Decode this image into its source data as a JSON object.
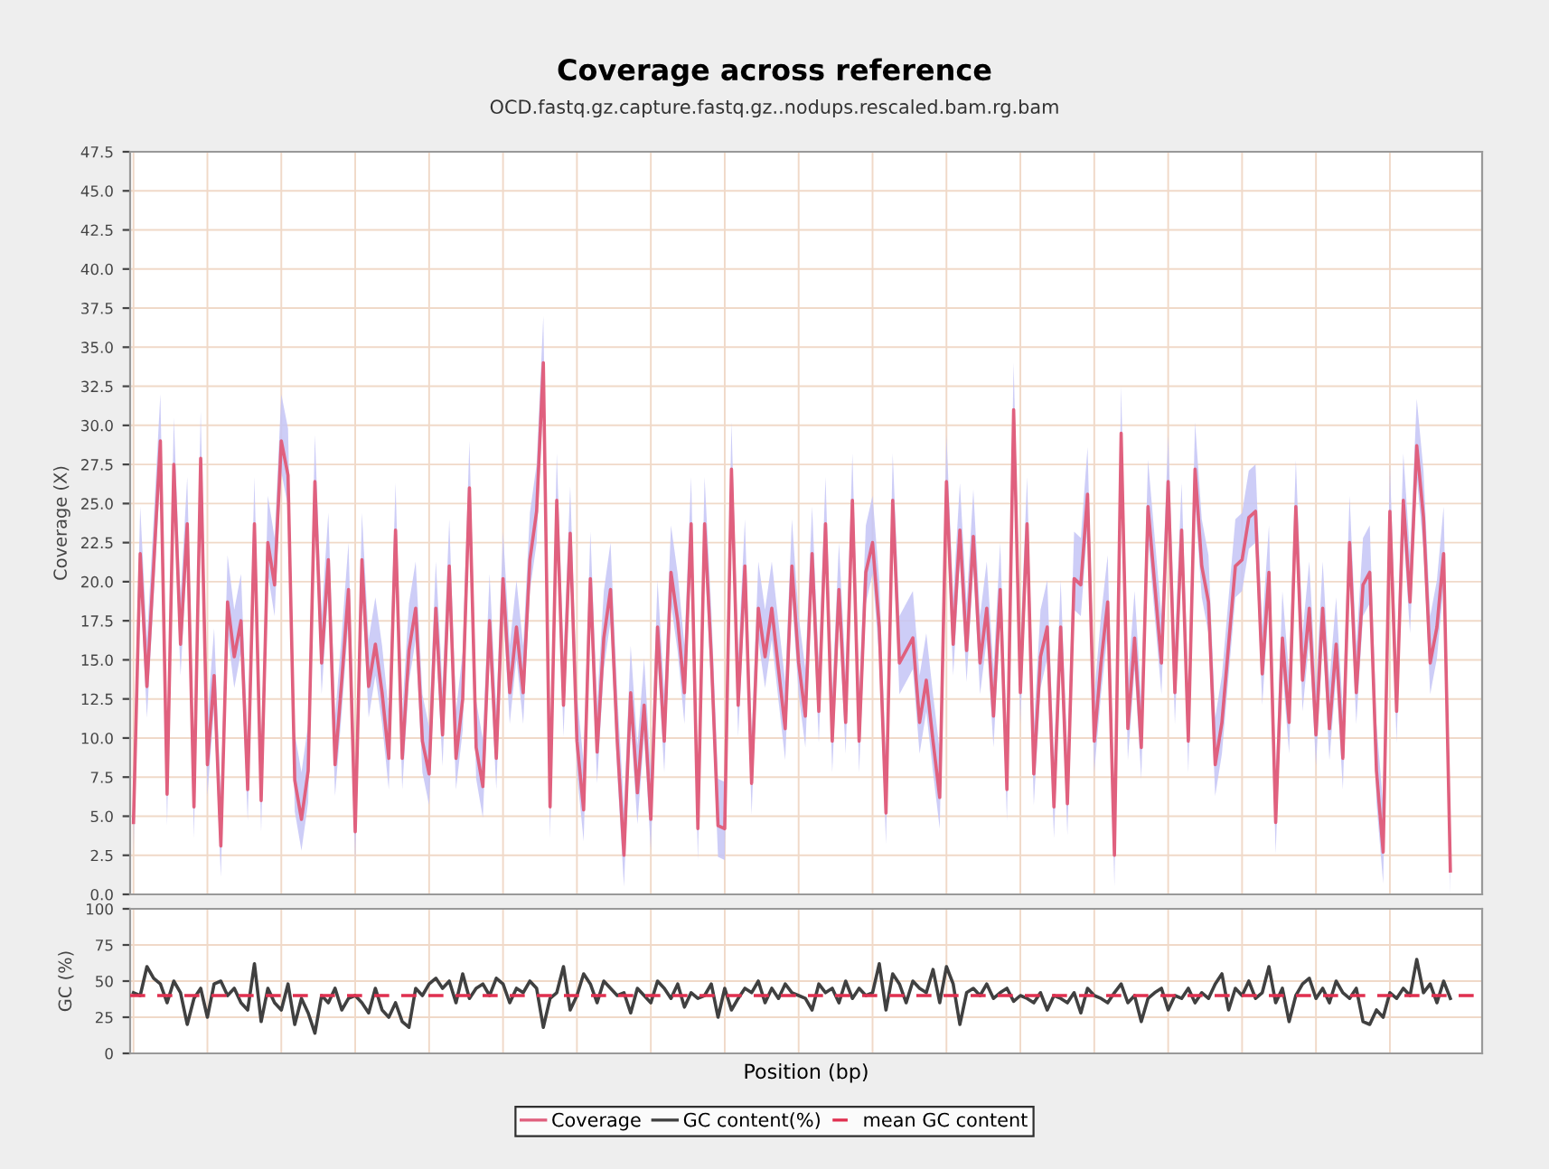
{
  "chart_data": [
    {
      "type": "line",
      "title": "Coverage across reference",
      "subtitle": "OCD.fastq.gz.capture.fastq.gz..nodups.rescaled.bam.rg.bam",
      "ylabel": "Coverage (X)",
      "categories": [
        null,
        null,
        null,
        null,
        null,
        null,
        null,
        null,
        null,
        null,
        null,
        null,
        null,
        null,
        null,
        null,
        null,
        null,
        null,
        null,
        null,
        null,
        null,
        null,
        null,
        null,
        null,
        null,
        null,
        null,
        null,
        null,
        null,
        null,
        null,
        null,
        null,
        null,
        null,
        null,
        null,
        null,
        null,
        null,
        null,
        null,
        null,
        null,
        null,
        null,
        null,
        null,
        null,
        null,
        null,
        null,
        null,
        null,
        null,
        null,
        null,
        null,
        null,
        null,
        null,
        null,
        null,
        null,
        null,
        null,
        null,
        null,
        null,
        null,
        null,
        null,
        null,
        null,
        null,
        null,
        null,
        null,
        null,
        null,
        null,
        null,
        null,
        null,
        null,
        null,
        null,
        null,
        null,
        null,
        null,
        null,
        null,
        null,
        null,
        null,
        null,
        null,
        null,
        null,
        null,
        null,
        null,
        null,
        null,
        null,
        null,
        null,
        null,
        null,
        null,
        null,
        null,
        null,
        null,
        null,
        null,
        null,
        null,
        null,
        null,
        null,
        null,
        null,
        null,
        null,
        null,
        null,
        null,
        null,
        null,
        null,
        null,
        null,
        null,
        null,
        null,
        null,
        null,
        null,
        null,
        null,
        null,
        null,
        null,
        null,
        null,
        null,
        null,
        null,
        null,
        null,
        null,
        null,
        null,
        null,
        null,
        null,
        null,
        null,
        null,
        null,
        null,
        null,
        null,
        null,
        null,
        null,
        null,
        null,
        null,
        null,
        null,
        null,
        null,
        null,
        null,
        null,
        null,
        null,
        null,
        null,
        null,
        null,
        null,
        null,
        null,
        null,
        null,
        null,
        null,
        null,
        null
      ],
      "series": [
        {
          "name": "Coverage",
          "color": "#e0607e",
          "values": [
            4.6,
            21.8,
            13.3,
            21,
            29,
            6.4,
            27.5,
            16,
            23.7,
            5.6,
            27.9,
            8.3,
            14,
            3.1,
            18.7,
            15.2,
            17.5,
            6.7,
            23.7,
            6,
            22.5,
            19.8,
            29,
            26.8,
            7.3,
            4.8,
            7.9,
            26.4,
            14.8,
            21.4,
            8.3,
            13.7,
            19.5,
            4,
            21.4,
            13.3,
            16,
            12.9,
            8.7,
            23.3,
            8.7,
            15.6,
            18.3,
            9.8,
            7.7,
            18.3,
            10.2,
            21,
            8.7,
            12.5,
            26,
            9.4,
            6.9,
            17.5,
            8.7,
            20.2,
            12.9,
            17.1,
            12.9,
            21.4,
            24.5,
            34,
            5.6,
            25.2,
            12.1,
            23.1,
            9.8,
            5.4,
            20.2,
            9.1,
            16.4,
            19.5,
            9.8,
            2.5,
            12.9,
            6.5,
            12.1,
            4.8,
            17.1,
            9.8,
            20.6,
            17.5,
            12.9,
            23.7,
            4.2,
            23.7,
            15.2,
            4.4,
            4.2,
            27.2,
            12.1,
            21,
            7.1,
            18.3,
            15.2,
            18.3,
            14.4,
            10.6,
            21,
            14.8,
            11.4,
            21.8,
            11.7,
            23.7,
            9.8,
            19.5,
            11,
            25.2,
            9.8,
            20.6,
            22.5,
            17.1,
            5.2,
            25.2,
            14.8,
            15.6,
            16.4,
            11,
            13.7,
            9.8,
            6.2,
            26.4,
            16,
            23.3,
            15.6,
            22.9,
            14.8,
            18.3,
            11.4,
            19.5,
            6.7,
            31,
            12.9,
            23.7,
            7.7,
            15.2,
            17.1,
            5.6,
            17.1,
            5.8,
            20.2,
            19.8,
            25.6,
            9.8,
            14.8,
            18.7,
            2.5,
            29.5,
            10.6,
            16.4,
            9.4,
            24.8,
            19.8,
            14.8,
            26.4,
            12.9,
            23.3,
            9.8,
            27.2,
            21,
            18.7,
            8.3,
            11,
            16,
            21,
            21.4,
            24.1,
            24.5,
            14.1,
            20.6,
            4.6,
            16.4,
            11,
            24.8,
            13.7,
            18.3,
            10.2,
            18.3,
            10.6,
            16,
            8.7,
            22.5,
            12.9,
            19.8,
            20.6,
            7.9,
            2.7,
            24.5,
            11.7,
            25.2,
            18.7,
            28.7,
            24.1,
            14.8,
            17.1,
            21.8,
            1.5
          ],
          "upper": [
            7.6,
            24.8,
            16.3,
            24,
            32,
            9.4,
            30.5,
            19,
            26.7,
            8.6,
            30.9,
            11.3,
            17,
            6.1,
            21.7,
            18.2,
            20.5,
            9.7,
            26.7,
            9,
            25.5,
            22.8,
            32,
            29.8,
            10.3,
            7.8,
            10.9,
            29.4,
            17.8,
            24.4,
            11.3,
            16.7,
            22.5,
            7,
            24.4,
            16.3,
            19,
            15.9,
            11.7,
            26.3,
            11.7,
            18.6,
            21.3,
            12.8,
            10.7,
            21.3,
            13.2,
            24,
            11.7,
            15.5,
            29,
            12.4,
            9.9,
            20.5,
            11.7,
            23.2,
            15.9,
            20.1,
            15.9,
            24.4,
            27.5,
            37,
            8.6,
            28.2,
            15.1,
            26.1,
            12.8,
            8.4,
            23.2,
            12.1,
            19.4,
            22.5,
            12.8,
            5.5,
            15.9,
            9.5,
            15.1,
            7.8,
            20.1,
            12.8,
            23.6,
            20.5,
            15.9,
            26.7,
            7.2,
            26.7,
            18.2,
            7.4,
            7.2,
            30.2,
            15.1,
            24,
            10.1,
            21.3,
            18.2,
            21.3,
            17.4,
            13.6,
            24,
            17.8,
            14.4,
            24.8,
            14.7,
            26.7,
            12.8,
            22.5,
            14,
            28.2,
            12.8,
            23.6,
            25.5,
            20.1,
            8.2,
            28.2,
            17.8,
            18.6,
            19.4,
            14,
            16.7,
            12.8,
            9.2,
            29.4,
            19,
            26.3,
            18.6,
            25.9,
            17.8,
            21.3,
            14.4,
            22.5,
            9.7,
            34,
            15.9,
            26.7,
            10.7,
            18.2,
            20.1,
            8.6,
            20.1,
            8.8,
            23.2,
            22.8,
            28.6,
            12.8,
            17.8,
            21.7,
            5.5,
            32.5,
            13.6,
            19.4,
            12.4,
            27.8,
            22.8,
            17.8,
            29.4,
            15.9,
            26.3,
            12.8,
            30.2,
            24,
            21.7,
            11.3,
            14,
            19,
            24,
            24.4,
            27.1,
            27.5,
            17.1,
            23.6,
            7.6,
            19.4,
            14,
            27.8,
            16.7,
            21.3,
            13.2,
            21.3,
            13.6,
            19,
            11.7,
            25.5,
            15.9,
            22.8,
            23.6,
            10.9,
            5.7,
            27.5,
            14.7,
            28.2,
            21.7,
            31.7,
            27.1,
            17.8,
            20.1,
            24.8,
            4.5
          ],
          "lower": [
            2.6,
            19.8,
            11.3,
            19,
            27,
            4.4,
            25.5,
            14,
            21.7,
            3.6,
            25.9,
            6.3,
            12,
            1.1,
            16.7,
            13.2,
            15.5,
            4.7,
            21.7,
            4,
            20.5,
            17.8,
            27,
            24.8,
            5.3,
            2.8,
            5.9,
            24.4,
            12.8,
            19.4,
            6.3,
            11.7,
            17.5,
            2,
            19.4,
            11.3,
            14,
            10.9,
            6.7,
            21.3,
            6.7,
            13.6,
            16.3,
            7.8,
            5.7,
            16.3,
            8.2,
            19,
            6.7,
            10.5,
            24,
            7.4,
            4.9,
            15.5,
            6.7,
            18.2,
            10.9,
            15.1,
            10.9,
            19.4,
            22.5,
            32,
            3.6,
            23.2,
            10.1,
            21.1,
            7.8,
            3.4,
            18.2,
            7.1,
            14.4,
            17.5,
            7.8,
            0.5,
            10.9,
            4.5,
            10.1,
            2.8,
            15.1,
            7.8,
            18.6,
            15.5,
            10.9,
            21.7,
            2.2,
            21.7,
            13.2,
            2.4,
            2.2,
            25.2,
            10.1,
            19,
            5.1,
            16.3,
            13.2,
            16.3,
            12.4,
            8.6,
            19,
            12.8,
            9.4,
            19.8,
            9.7,
            21.7,
            7.8,
            17.5,
            9,
            23.2,
            7.8,
            18.6,
            20.5,
            15.1,
            3.2,
            23.2,
            12.8,
            13.6,
            14.4,
            9,
            11.7,
            7.8,
            4.2,
            24.4,
            14,
            21.3,
            13.6,
            20.9,
            12.8,
            16.3,
            9.4,
            17.5,
            4.7,
            29,
            10.9,
            21.7,
            5.7,
            13.2,
            15.1,
            3.6,
            15.1,
            3.8,
            18.2,
            17.8,
            23.6,
            7.8,
            12.8,
            16.7,
            0.5,
            27.5,
            8.6,
            14.4,
            7.4,
            22.8,
            17.8,
            12.8,
            24.4,
            10.9,
            21.3,
            7.8,
            25.2,
            19,
            16.7,
            6.3,
            9,
            14,
            19,
            19.4,
            22.1,
            22.5,
            12.1,
            18.6,
            2.6,
            14.4,
            9,
            22.8,
            11.7,
            16.3,
            8.2,
            16.3,
            8.6,
            14,
            6.7,
            20.5,
            10.9,
            17.8,
            18.6,
            5.9,
            0.7,
            22.5,
            9.7,
            23.2,
            16.7,
            26.7,
            22.1,
            12.8,
            15.1,
            19.8,
            0
          ]
        }
      ],
      "ylim": [
        0,
        47.5
      ],
      "yticks": [
        {
          "value": 0,
          "label": "0.0"
        },
        2.5,
        {
          "value": 5,
          "label": "5.0"
        },
        7.5,
        {
          "value": 10,
          "label": "10.0"
        },
        12.5,
        {
          "value": 15,
          "label": "15.0"
        },
        17.5,
        {
          "value": 20,
          "label": "20.0"
        },
        22.5,
        {
          "value": 25,
          "label": "25.0"
        },
        27.5,
        {
          "value": 30,
          "label": "30.0"
        },
        32.5,
        {
          "value": 35,
          "label": "35.0"
        },
        37.5,
        {
          "value": 40,
          "label": "40.0"
        },
        42.5,
        {
          "value": 45,
          "label": "45.0"
        },
        47.5
      ],
      "grid": true,
      "legend": "bottom",
      "tick_labels": "y"
    },
    {
      "type": "line",
      "ylabel": "GC (%)",
      "xlabel": "Position (bp)",
      "categories": [
        null,
        null,
        null,
        null,
        null,
        null,
        null,
        null,
        null,
        null,
        null,
        null,
        null,
        null,
        null,
        null,
        null,
        null,
        null,
        null,
        null,
        null,
        null,
        null,
        null,
        null,
        null,
        null,
        null,
        null,
        null,
        null,
        null,
        null,
        null,
        null,
        null,
        null,
        null,
        null,
        null,
        null,
        null,
        null,
        null,
        null,
        null,
        null,
        null,
        null,
        null,
        null,
        null,
        null,
        null,
        null,
        null,
        null,
        null,
        null,
        null,
        null,
        null,
        null,
        null,
        null,
        null,
        null,
        null,
        null,
        null,
        null,
        null,
        null,
        null,
        null,
        null,
        null,
        null,
        null,
        null,
        null,
        null,
        null,
        null,
        null,
        null,
        null,
        null,
        null,
        null,
        null,
        null,
        null,
        null,
        null,
        null,
        null,
        null,
        null,
        null,
        null,
        null,
        null,
        null,
        null,
        null,
        null,
        null,
        null,
        null,
        null,
        null,
        null,
        null,
        null,
        null,
        null,
        null,
        null,
        null,
        null,
        null,
        null,
        null,
        null,
        null,
        null,
        null,
        null,
        null,
        null,
        null,
        null,
        null,
        null,
        null,
        null,
        null,
        null,
        null,
        null,
        null,
        null,
        null,
        null,
        null,
        null,
        null,
        null,
        null,
        null,
        null,
        null,
        null,
        null,
        null,
        null,
        null,
        null,
        null,
        null,
        null,
        null,
        null,
        null,
        null,
        null,
        null,
        null,
        null,
        null,
        null,
        null,
        null,
        null,
        null,
        null,
        null,
        null,
        null,
        null,
        null,
        null,
        null,
        null,
        null,
        null,
        null,
        null,
        null,
        null,
        null,
        null,
        null,
        null,
        null
      ],
      "series": [
        {
          "name": "GC content(%)",
          "color": "#404040",
          "values": [
            42,
            40,
            60,
            52,
            48,
            35,
            50,
            42,
            20,
            38,
            45,
            25,
            48,
            50,
            40,
            45,
            35,
            30,
            62,
            22,
            45,
            35,
            30,
            48,
            20,
            38,
            28,
            14,
            40,
            35,
            45,
            30,
            38,
            40,
            35,
            28,
            45,
            30,
            25,
            35,
            22,
            18,
            45,
            40,
            48,
            52,
            45,
            50,
            35,
            55,
            38,
            45,
            48,
            40,
            52,
            48,
            35,
            45,
            42,
            50,
            45,
            18,
            38,
            42,
            60,
            30,
            40,
            55,
            48,
            35,
            50,
            45,
            40,
            42,
            28,
            45,
            40,
            35,
            50,
            45,
            38,
            48,
            32,
            42,
            38,
            40,
            48,
            25,
            45,
            30,
            38,
            45,
            42,
            50,
            35,
            45,
            38,
            48,
            42,
            40,
            38,
            30,
            48,
            42,
            45,
            35,
            50,
            38,
            45,
            40,
            42,
            62,
            30,
            55,
            48,
            35,
            50,
            45,
            42,
            58,
            35,
            60,
            48,
            20,
            42,
            45,
            40,
            48,
            38,
            42,
            45,
            36,
            40,
            38,
            35,
            42,
            30,
            40,
            38,
            35,
            42,
            28,
            45,
            40,
            38,
            35,
            42,
            48,
            35,
            40,
            22,
            38,
            42,
            45,
            30,
            40,
            38,
            45,
            35,
            42,
            38,
            48,
            55,
            30,
            45,
            40,
            50,
            38,
            42,
            60,
            35,
            45,
            22,
            40,
            48,
            52,
            38,
            45,
            35,
            50,
            42,
            38,
            45,
            22,
            20,
            30,
            25,
            42,
            38,
            45,
            40,
            65,
            42,
            48,
            35,
            50,
            38
          ]
        }
      ],
      "ref_lines": [
        {
          "axis": "y",
          "value": 40,
          "label": "mean GC content",
          "color": "#e03050",
          "line_style": "dashed"
        }
      ],
      "ylim": [
        0,
        100
      ],
      "yticks": [
        0,
        25,
        50,
        75,
        100
      ],
      "grid": true,
      "legend": "bottom",
      "tick_labels": "y"
    }
  ]
}
